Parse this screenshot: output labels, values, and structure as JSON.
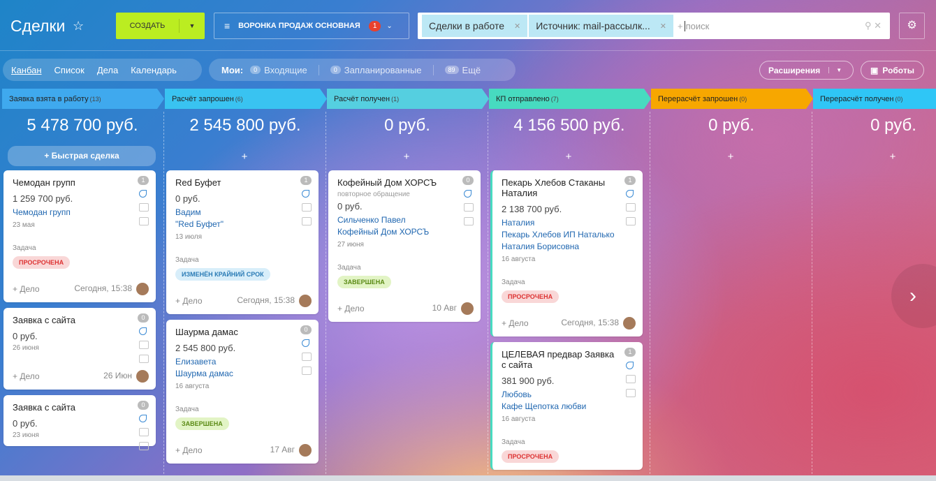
{
  "header": {
    "title": "Сделки",
    "create_button": "СОЗДАТЬ",
    "funnel": "ВОРОНКА ПРОДАЖ ОСНОВНАЯ",
    "funnel_badge": "1",
    "filters": [
      "Сделки в работе",
      "Источник: mail-рассылк..."
    ],
    "search_prefix": "+",
    "search_placeholder": "поиск"
  },
  "toolbar": {
    "views": [
      "Канбан",
      "Список",
      "Дела",
      "Календарь"
    ],
    "my_label": "Мои:",
    "counters": [
      {
        "count": "0",
        "label": "Входящие"
      },
      {
        "count": "0",
        "label": "Запланированные"
      },
      {
        "count": "89",
        "label": "Ещё"
      }
    ],
    "extensions": "Расширения",
    "robots": "Роботы"
  },
  "columns": [
    {
      "title": "Заявка взята в работу",
      "count": "(13)",
      "color": "#3fa9ee",
      "total": "5 478 700 руб.",
      "quick_add": "+ Быстрая сделка",
      "deals": [
        {
          "title": "Чемодан групп",
          "badge": "1",
          "amount": "1 259 700 руб.",
          "contacts": [
            "Чемодан групп"
          ],
          "date": "23 мая",
          "task": "Задача",
          "status": {
            "text": "ПРОСРОЧЕНА",
            "color": "#f9d7d7",
            "text_color": "#d33"
          },
          "add": "+ Дело",
          "time": "Сегодня, 15:38"
        },
        {
          "title": "Заявка с сайта",
          "badge": "0",
          "amount": "0 руб.",
          "contacts": [],
          "date": "26 июня",
          "add": "+ Дело",
          "time": "26 Июн"
        },
        {
          "title": "Заявка с сайта",
          "badge": "0",
          "amount": "0 руб.",
          "contacts": [],
          "date": "23 июня"
        }
      ]
    },
    {
      "title": "Расчёт запрошен",
      "count": "(6)",
      "color": "#39c3f1",
      "total": "2 545 800 руб.",
      "quick_add": "+",
      "deals": [
        {
          "title": "Red Буфет",
          "badge": "1",
          "amount": "0 руб.",
          "contacts": [
            "Вадим",
            "\"Red Буфет\""
          ],
          "date": "13 июля",
          "task": "Задача",
          "status": {
            "text": "ИЗМЕНЁН КРАЙНИЙ СРОК",
            "color": "#d8eefa",
            "text_color": "#2a7bb5"
          },
          "add": "+ Дело",
          "time": "Сегодня, 15:38"
        },
        {
          "title": "Шаурма дамас",
          "badge": "0",
          "amount": "2 545 800 руб.",
          "contacts": [
            "Елизавета",
            "Шаурма дамас"
          ],
          "date": "16 августа",
          "task": "Задача",
          "status": {
            "text": "ЗАВЕРШЕНА",
            "color": "#e2f4c5",
            "text_color": "#5a8a14"
          },
          "add": "+ Дело",
          "time": "17 Авг"
        }
      ]
    },
    {
      "title": "Расчёт получен",
      "count": "(1)",
      "color": "#55cfe0",
      "total": "0 руб.",
      "quick_add": "+",
      "deals": [
        {
          "title": "Кофейный Дом ХОРСЪ",
          "badge": "0",
          "subtitle": "повторное обращение",
          "amount": "0 руб.",
          "contacts": [
            "Сильченко Павел",
            "Кофейный Дом ХОРСЪ"
          ],
          "date": "27 июня",
          "task": "Задача",
          "status": {
            "text": "ЗАВЕРШЕНА",
            "color": "#e2f4c5",
            "text_color": "#5a8a14"
          },
          "add": "+ Дело",
          "time": "10 Авг"
        }
      ]
    },
    {
      "title": "КП отправлено",
      "count": "(7)",
      "color": "#47dbc0",
      "total": "4 156 500 руб.",
      "quick_add": "+",
      "deals": [
        {
          "title": "Пекарь Хлебов Стаканы Наталия",
          "badge": "1",
          "amount": "2 138 700 руб.",
          "contacts": [
            "Наталия",
            "Пекарь Хлебов ИП Наталько",
            "Наталия Борисовна"
          ],
          "date": "16 августа",
          "task": "Задача",
          "status": {
            "text": "ПРОСРОЧЕНА",
            "color": "#f9d7d7",
            "text_color": "#d33"
          },
          "add": "+ Дело",
          "time": "Сегодня, 15:38"
        },
        {
          "title": "ЦЕЛЕВАЯ предвар Заявка с сайта",
          "badge": "1",
          "amount": "381 900 руб.",
          "contacts": [
            "Любовь",
            "Кафе Щепотка любви"
          ],
          "date": "16 августа",
          "task": "Задача",
          "status": {
            "text": "ПРОСРОЧЕНА",
            "color": "#f9d7d7",
            "text_color": "#d33"
          }
        }
      ]
    },
    {
      "title": "Перерасчёт запрошен",
      "count": "(0)",
      "color": "#f7a700",
      "total": "0 руб.",
      "quick_add": "+",
      "deals": []
    },
    {
      "title": "Перерасчёт получен",
      "count": "(0)",
      "color": "#2fc6f6",
      "total": "0 руб.",
      "quick_add": "+",
      "deals": []
    }
  ]
}
